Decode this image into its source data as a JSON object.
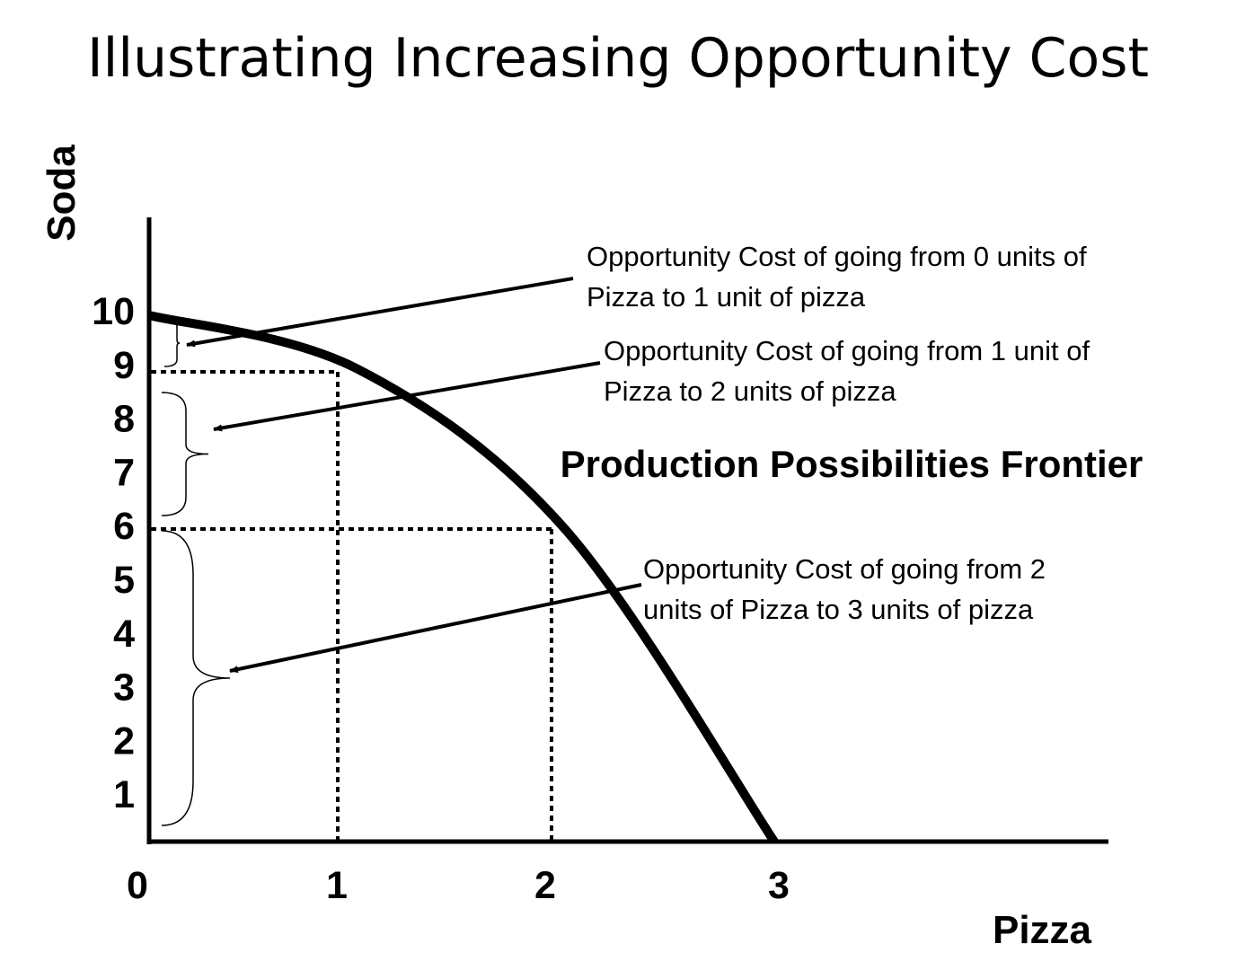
{
  "title": "Illustrating Increasing Opportunity Cost",
  "chart_data": {
    "type": "line",
    "xlabel": "Pizza",
    "ylabel": "Soda",
    "x_ticks": [
      "0",
      "1",
      "2",
      "3"
    ],
    "y_ticks": [
      "1",
      "2",
      "3",
      "4",
      "5",
      "6",
      "7",
      "8",
      "9",
      "10"
    ],
    "xlim": [
      0,
      3
    ],
    "ylim": [
      0,
      10
    ],
    "grid": false,
    "series": [
      {
        "name": "Production Possibilities Frontier",
        "x": [
          0,
          1,
          2,
          3
        ],
        "y": [
          10,
          9,
          6,
          0
        ]
      }
    ],
    "annotations": [
      {
        "lines": [
          "Opportunity Cost of going from 0 units of",
          "Pizza to 1 unit of pizza"
        ],
        "y_from": 10,
        "y_to": 9
      },
      {
        "lines": [
          "Opportunity Cost of going from 1 unit of",
          "Pizza to 2 units of pizza"
        ],
        "y_from": 9,
        "y_to": 6
      },
      {
        "lines": [
          "Opportunity Cost of going from 2",
          "units of Pizza to 3 units of pizza"
        ],
        "y_from": 6,
        "y_to": 0
      }
    ]
  }
}
